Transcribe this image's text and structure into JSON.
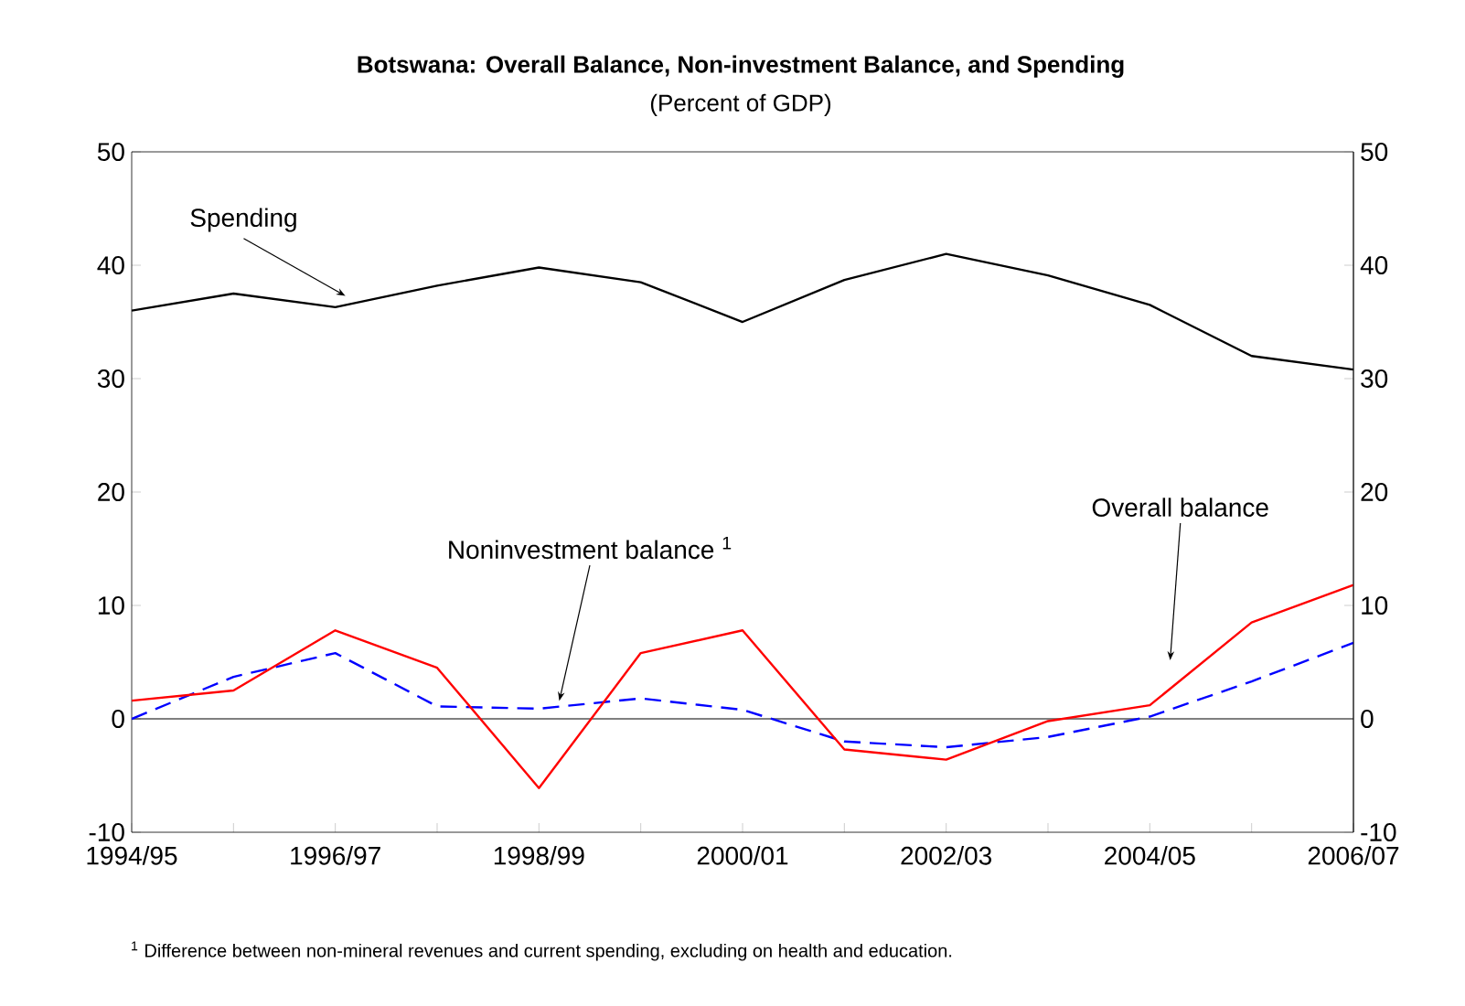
{
  "chart_data": {
    "type": "line",
    "title": "Botswana: Overall Balance, Non-investment Balance, and Spending",
    "subtitle": "(Percent of GDP)",
    "categories": [
      "1994/95",
      null,
      "1996/97",
      null,
      "1998/99",
      null,
      "2000/01",
      null,
      "2002/03",
      null,
      "2004/05",
      null,
      "2006/07"
    ],
    "series": [
      {
        "name": "Spending",
        "color": "#000000",
        "line_style": "solid",
        "values": [
          36,
          37.5,
          36.3,
          38.2,
          39.8,
          38.5,
          35,
          38.7,
          41,
          39.1,
          36.5,
          32,
          30.8
        ]
      },
      {
        "name": "Noninvestment balance $^{1}$",
        "color": "#0000ff",
        "line_style": "dashed",
        "values": [
          0,
          3.7,
          5.8,
          1.1,
          0.9,
          1.8,
          0.8,
          -2,
          -2.5,
          -1.6,
          0.2,
          3.3,
          6.7
        ]
      },
      {
        "name": "Overall balance",
        "color": "#ff0000",
        "line_style": "solid",
        "values": [
          1.6,
          2.5,
          7.8,
          4.5,
          -6.1,
          5.8,
          7.8,
          -2.7,
          -3.6,
          -0.2,
          1.2,
          8.5,
          11.8
        ]
      }
    ],
    "ylim": [
      -10,
      50
    ],
    "yticks": [
      -10,
      0,
      10,
      20,
      30,
      40,
      50
    ],
    "y2lim": [
      -10,
      50
    ],
    "y2ticks": [
      -10,
      0,
      10,
      20,
      30,
      40,
      50
    ],
    "ref_lines": [
      {
        "axis": "y",
        "value": 0,
        "color": "#000000"
      }
    ],
    "grid": false,
    "marker": "none",
    "annotations": [
      "$^{1}$ Difference between non-mineral revenues and current spending, excluding on health and education."
    ]
  }
}
